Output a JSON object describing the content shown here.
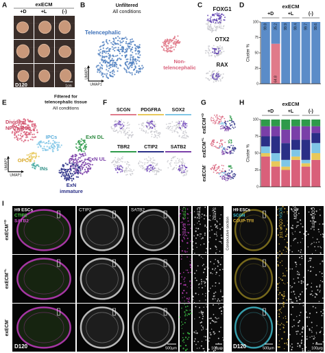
{
  "panel_labels": [
    "A",
    "B",
    "C",
    "D",
    "E",
    "F",
    "G",
    "H",
    "I"
  ],
  "panel_a": {
    "title": "exECM",
    "conditions": [
      "+D",
      "+L",
      "(-)"
    ],
    "day": "D120",
    "scale": "1cm"
  },
  "panel_b": {
    "title": [
      "Unfiltered",
      "All conditions"
    ],
    "telencephalic": "Telencephalic",
    "non_telencephalic": [
      "Non-",
      "telencephalic"
    ],
    "axis_y": "UMAP2",
    "axis_x": "UMAP1"
  },
  "panel_c": {
    "genes": [
      "FOXG1",
      "OTX2",
      "RAX"
    ]
  },
  "panel_e": {
    "title": [
      "Filtered for",
      "telencephalic tissue",
      "All conditions"
    ],
    "clusters": {
      "npc": [
        "Dividing",
        "NPCs/RGs"
      ],
      "ipc": "IPCs",
      "opc": "OPCs",
      "in": "INs",
      "dl": "ExN DL",
      "ul": "ExN UL",
      "imm": [
        "ExN",
        "immature"
      ]
    },
    "axis_y": "UMAP2",
    "axis_x": "UMAP1"
  },
  "panel_f": {
    "genes": [
      "SCGN",
      "PDGFRA",
      "SOX2",
      "TBR2",
      "CTIP2",
      "SATB2"
    ]
  },
  "panel_g": {
    "rows": [
      {
        "base": "exECM",
        "sup": "+D"
      },
      {
        "base": "exECM",
        "sup": "+L"
      },
      {
        "base": "exECM",
        "sup": "-"
      }
    ]
  },
  "panel_i": {
    "left": {
      "stain": [
        "H9 ESCs",
        "CTIP2",
        "SATB2"
      ],
      "columns": [
        "CTIP2",
        "SATB2"
      ],
      "zoom_merged": [
        "CTIP2",
        "SATB2"
      ],
      "zoom": [
        "CTIP2",
        "SATB2"
      ],
      "rows": [
        {
          "base": "exECM",
          "sup": "+D"
        },
        {
          "base": "exECM",
          "sup": "+L"
        },
        {
          "base": "exECM",
          "sup": "-"
        }
      ],
      "day": "D120",
      "scale": [
        "500µm",
        "100µm"
      ]
    },
    "right": {
      "stain": [
        "H9 ESCs",
        "SCGN",
        "COUP-TFII"
      ],
      "zoom_merged": [
        "SCGN",
        "COUP-TFII"
      ],
      "zoom": [
        "SCGN",
        "COUP-TFII"
      ],
      "note": "Consecutive section",
      "day": "D120",
      "scale": [
        "500µm",
        "100µm"
      ]
    }
  },
  "chart_data": [
    {
      "type": "bar",
      "stacked": true,
      "title": "exECM",
      "groups": [
        "+D",
        "+L",
        "(-)"
      ],
      "ylabel": "Cluster %",
      "categories": [
        null,
        null,
        null,
        null,
        null,
        null
      ],
      "ylim": [
        0,
        100
      ],
      "yticks": [
        0,
        25,
        50,
        75,
        100
      ],
      "data_labels": true,
      "series": [
        {
          "color": "#e07a8a",
          "values": [
            0.2,
            64.8,
            0.1,
            0.6,
            0.3,
            0.4
          ]
        },
        {
          "color": "#5b8cc8",
          "values": [
            99.8,
            35.2,
            99.9,
            99.4,
            99.7,
            99.6
          ]
        }
      ]
    },
    {
      "type": "bar",
      "stacked": true,
      "title": "exECM",
      "groups": [
        "+D",
        "+L",
        "(-)"
      ],
      "ylabel": "Cluster %",
      "categories": [
        null,
        null,
        null,
        null,
        null,
        null
      ],
      "ylim": [
        0,
        100
      ],
      "yticks": [
        0,
        25,
        50,
        75,
        100
      ],
      "data_labels": false,
      "series": [
        {
          "color": "#d9607a",
          "values": [
            45,
            30,
            25,
            40,
            30,
            40
          ]
        },
        {
          "color": "#e8c85a",
          "values": [
            5,
            8,
            5,
            5,
            5,
            10
          ]
        },
        {
          "color": "#7fc6e6",
          "values": [
            10,
            12,
            10,
            10,
            5,
            15
          ]
        },
        {
          "color": "#2a2f86",
          "values": [
            15,
            25,
            25,
            15,
            30,
            15
          ]
        },
        {
          "color": "#7a3fa8",
          "values": [
            15,
            15,
            20,
            20,
            20,
            10
          ]
        },
        {
          "color": "#2e9a4a",
          "values": [
            10,
            10,
            15,
            10,
            10,
            10
          ]
        }
      ]
    }
  ]
}
